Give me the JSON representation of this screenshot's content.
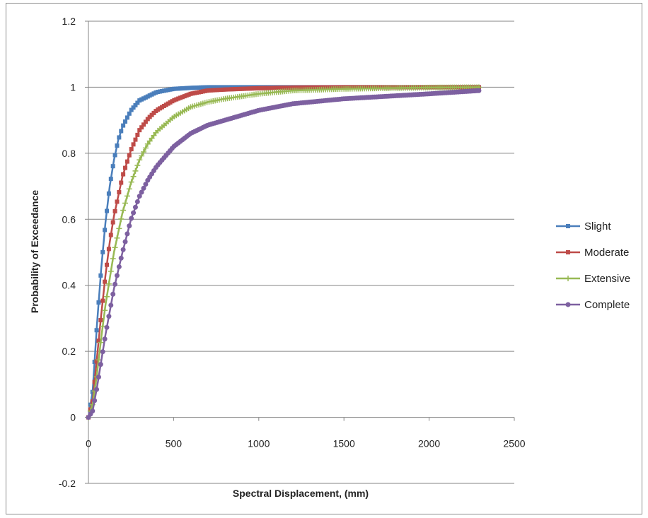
{
  "chart_data": {
    "type": "line",
    "title": "",
    "xlabel": "Spectral Displacement, (mm)",
    "ylabel": "Probability of Exceedance",
    "xlim": [
      0,
      2500
    ],
    "ylim": [
      -0.2,
      1.2
    ],
    "xticks": [
      0,
      500,
      1000,
      1500,
      2000,
      2500
    ],
    "yticks": [
      -0.2,
      0,
      0.2,
      0.4,
      0.6,
      0.8,
      1,
      1.2
    ],
    "xtick_labels": [
      "0",
      "500",
      "1000",
      "1500",
      "2000",
      "2500"
    ],
    "ytick_labels": [
      "-0.2",
      "0",
      "0.2",
      "0.4",
      "0.6",
      "0.8",
      "1",
      "1.2"
    ],
    "grid": "horizontal",
    "legend_position": "right",
    "series": [
      {
        "name": "Slight",
        "color": "#4a7ebb",
        "marker": "square",
        "x": [
          0,
          25,
          50,
          75,
          100,
          125,
          150,
          175,
          200,
          250,
          300,
          400,
          500,
          600,
          700,
          800,
          1000,
          1500,
          2000,
          2300
        ],
        "y": [
          0,
          0.08,
          0.28,
          0.45,
          0.59,
          0.7,
          0.78,
          0.84,
          0.88,
          0.93,
          0.96,
          0.985,
          0.995,
          0.998,
          1,
          1,
          1,
          1,
          1,
          1
        ]
      },
      {
        "name": "Moderate",
        "color": "#be4b48",
        "marker": "square",
        "x": [
          0,
          25,
          50,
          75,
          100,
          125,
          150,
          200,
          250,
          300,
          350,
          400,
          500,
          600,
          700,
          800,
          1000,
          1200,
          1500,
          2000,
          2300
        ],
        "y": [
          0,
          0.05,
          0.18,
          0.31,
          0.43,
          0.53,
          0.61,
          0.73,
          0.81,
          0.87,
          0.905,
          0.93,
          0.96,
          0.98,
          0.99,
          0.993,
          0.997,
          0.999,
          1,
          1,
          1
        ]
      },
      {
        "name": "Extensive",
        "color": "#98b954",
        "marker": "plus",
        "x": [
          0,
          25,
          50,
          75,
          100,
          150,
          200,
          250,
          300,
          350,
          400,
          500,
          600,
          700,
          800,
          1000,
          1200,
          1500,
          2000,
          2300
        ],
        "y": [
          0,
          0.04,
          0.13,
          0.24,
          0.34,
          0.5,
          0.62,
          0.71,
          0.78,
          0.83,
          0.865,
          0.91,
          0.94,
          0.955,
          0.965,
          0.98,
          0.99,
          0.995,
          0.999,
          1
        ]
      },
      {
        "name": "Complete",
        "color": "#7d60a0",
        "marker": "circle",
        "x": [
          0,
          25,
          50,
          75,
          100,
          150,
          200,
          250,
          300,
          350,
          400,
          500,
          600,
          700,
          800,
          1000,
          1200,
          1500,
          2000,
          2300
        ],
        "y": [
          0,
          0.02,
          0.09,
          0.17,
          0.25,
          0.39,
          0.5,
          0.6,
          0.67,
          0.72,
          0.76,
          0.82,
          0.86,
          0.885,
          0.9,
          0.93,
          0.95,
          0.965,
          0.98,
          0.99
        ]
      }
    ]
  }
}
